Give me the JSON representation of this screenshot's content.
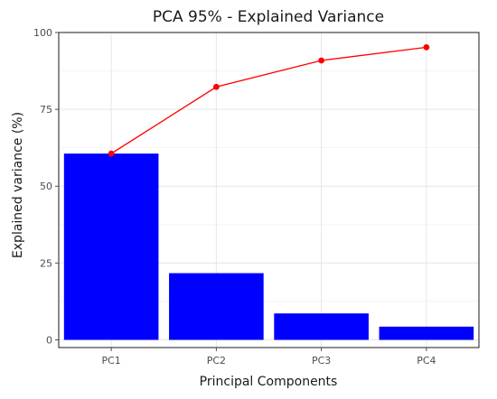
{
  "chart_data": {
    "type": "bar",
    "title": "PCA 95% - Explained Variance",
    "xlabel": "Principal Components",
    "ylabel": "Explained variance (%)",
    "categories": [
      "PC1",
      "PC2",
      "PC3",
      "PC4"
    ],
    "series": [
      {
        "type": "bar",
        "values": [
          60.6,
          21.7,
          8.6,
          4.3
        ],
        "color": "#0000ff"
      },
      {
        "type": "line",
        "values": [
          60.6,
          82.3,
          90.9,
          95.2
        ],
        "color": "#ff0000"
      }
    ],
    "ylim": [
      -2.5,
      100
    ],
    "yticks": [
      0,
      25,
      50,
      75,
      100
    ],
    "grid": true,
    "legend": "none"
  }
}
